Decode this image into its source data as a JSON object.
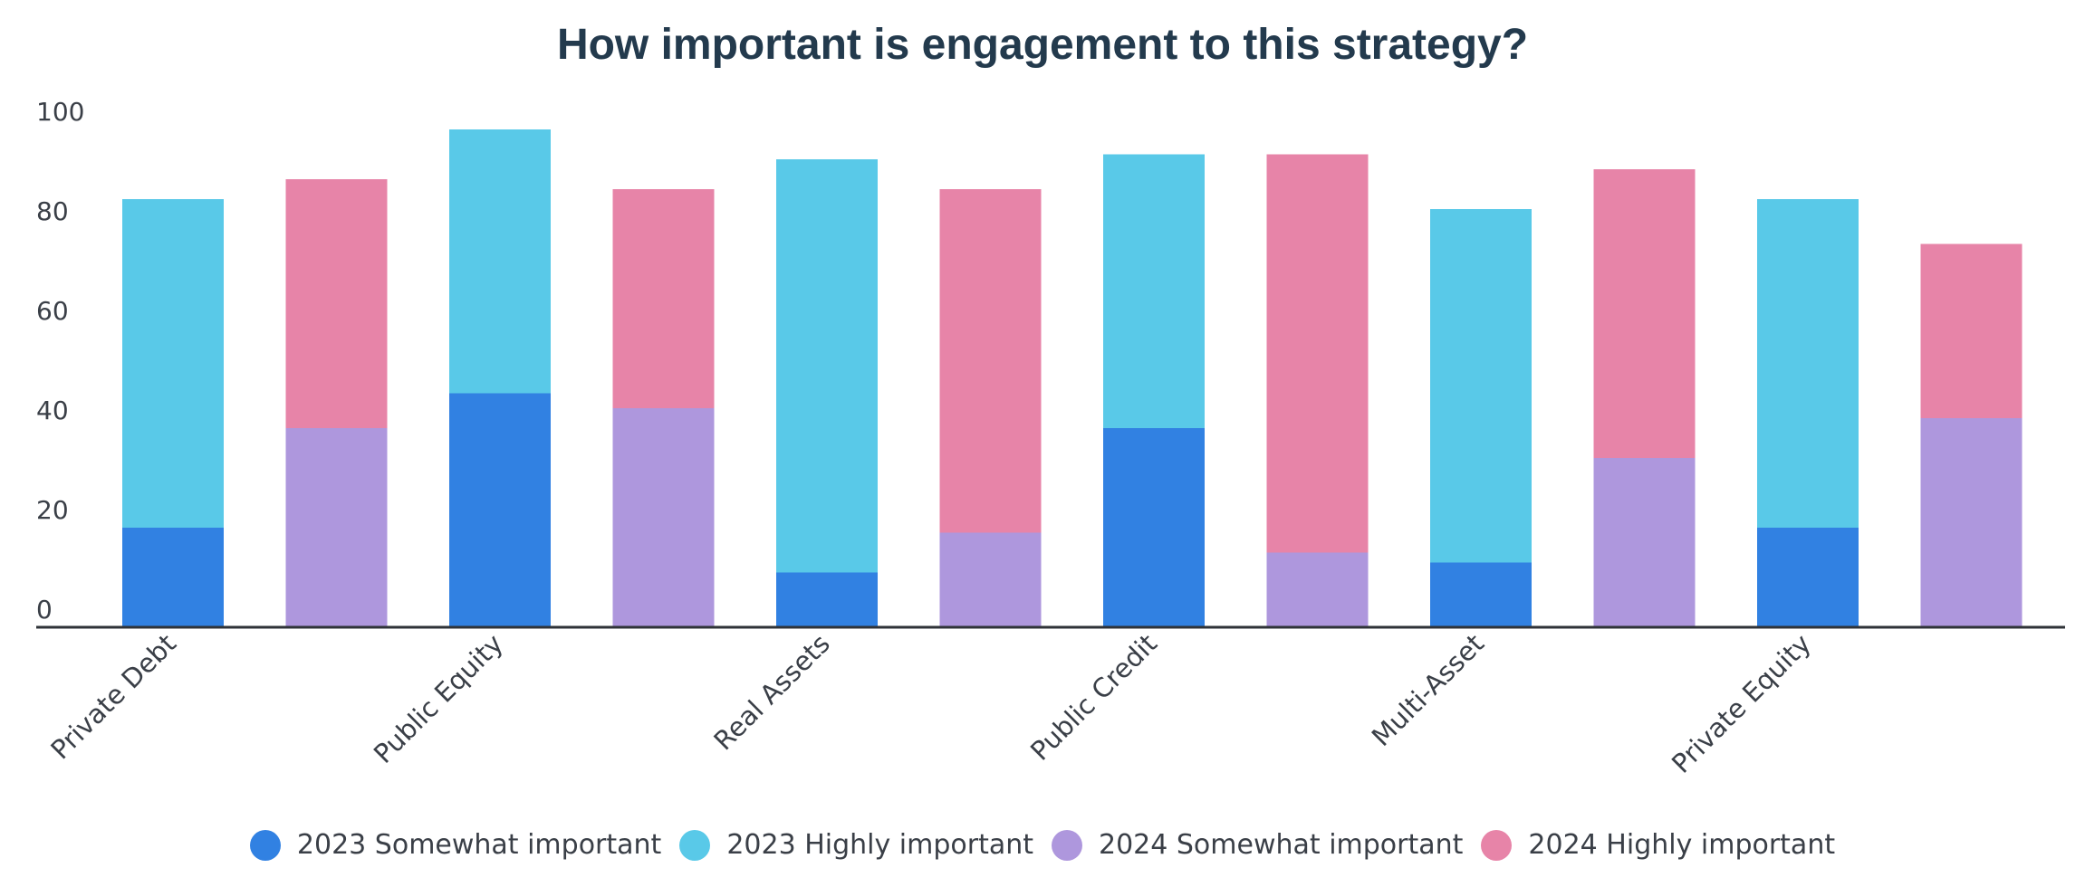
{
  "chart_data": {
    "type": "bar",
    "stacked": true,
    "title": "How important is engagement to this strategy?",
    "xlabel": "",
    "ylabel": "",
    "ylim": [
      0,
      100
    ],
    "yticks": [
      0,
      20,
      40,
      60,
      80,
      100
    ],
    "grid": false,
    "legend_position": "bottom",
    "x_tick_labels": [
      "Private Debt",
      "Public Equity",
      "Real Assets",
      "Public Credit",
      "Multi-Asset",
      "Private Equity"
    ],
    "groups": [
      {
        "category": "Private Debt",
        "year": "2023",
        "somewhat": 20,
        "highly": 66
      },
      {
        "category": "Private Debt",
        "year": "2024",
        "somewhat": 40,
        "highly": 50
      },
      {
        "category": "Public Equity",
        "year": "2023",
        "somewhat": 47,
        "highly": 53
      },
      {
        "category": "Public Equity",
        "year": "2024",
        "somewhat": 44,
        "highly": 44
      },
      {
        "category": "Real Assets",
        "year": "2023",
        "somewhat": 11,
        "highly": 83
      },
      {
        "category": "Real Assets",
        "year": "2024",
        "somewhat": 19,
        "highly": 69
      },
      {
        "category": "Public Credit",
        "year": "2023",
        "somewhat": 40,
        "highly": 55
      },
      {
        "category": "Public Credit",
        "year": "2024",
        "somewhat": 15,
        "highly": 80
      },
      {
        "category": "Multi-Asset",
        "year": "2023",
        "somewhat": 13,
        "highly": 71
      },
      {
        "category": "Multi-Asset",
        "year": "2024",
        "somewhat": 34,
        "highly": 58
      },
      {
        "category": "Private Equity",
        "year": "2023",
        "somewhat": 20,
        "highly": 66
      },
      {
        "category": "Private Equity",
        "year": "2024",
        "somewhat": 42,
        "highly": 35
      }
    ],
    "series": [
      {
        "name": "2023 Somewhat important",
        "color": "#3181e2"
      },
      {
        "name": "2023 Highly important",
        "color": "#59c9e8"
      },
      {
        "name": "2024 Somewhat important",
        "color": "#ae97dd"
      },
      {
        "name": "2024 Highly important",
        "color": "#e784a8"
      }
    ]
  }
}
